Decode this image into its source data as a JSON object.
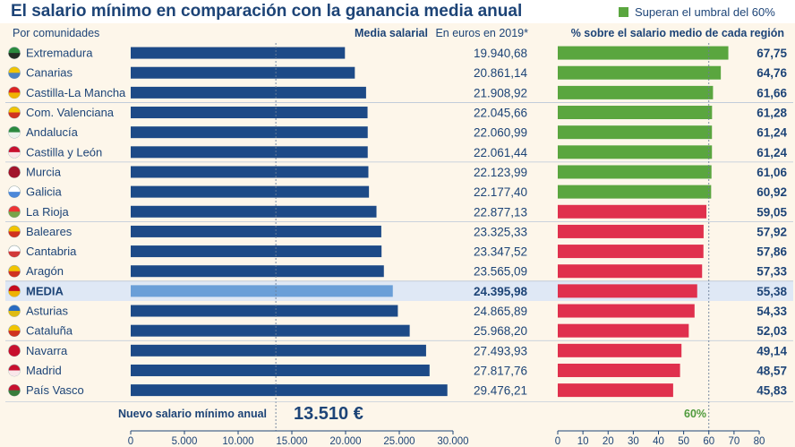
{
  "title": "El salario mínimo en comparación con la ganancia media anual",
  "legend": {
    "label": "Superan el umbral del 60%",
    "color": "#5aa63f"
  },
  "headers": {
    "left": "Por comunidades",
    "salary_bold": "Media salarial",
    "salary_rest": "En euros en 2019*",
    "pct": "% sobre el salario medio de cada región"
  },
  "colors": {
    "bar_blue": "#1d4a87",
    "bar_media": "#6a9fd8",
    "pct_green": "#5aa63f",
    "pct_red": "#e0304d",
    "text": "#1d4477",
    "media_row_bg": "#dfe8f5"
  },
  "chart_data": [
    {
      "type": "bar",
      "orientation": "horizontal",
      "categories": [
        "Extremadura",
        "Canarias",
        "Castilla-La Mancha",
        "Com. Valenciana",
        "Andalucía",
        "Castilla y León",
        "Murcia",
        "Galicia",
        "La Rioja",
        "Baleares",
        "Cantabria",
        "Aragón",
        "MEDIA",
        "Asturias",
        "Cataluña",
        "Navarra",
        "Madrid",
        "País Vasco"
      ],
      "values": [
        19940.68,
        20861.14,
        21908.92,
        22045.66,
        22060.99,
        22061.44,
        22123.99,
        22177.4,
        22877.13,
        23325.33,
        23347.52,
        23565.09,
        24395.98,
        24865.89,
        25968.2,
        27493.93,
        27817.76,
        29476.21
      ],
      "value_labels": [
        "19.940,68",
        "20.861,14",
        "21.908,92",
        "22.045,66",
        "22.060,99",
        "22.061,44",
        "22.123,99",
        "22.177,40",
        "22.877,13",
        "23.325,33",
        "23.347,52",
        "23.565,09",
        "24.395,98",
        "24.865,89",
        "25.968,20",
        "27.493,93",
        "27.817,76",
        "29.476,21"
      ],
      "xlim": [
        0,
        30000
      ],
      "ticks": [
        "0",
        "5.000",
        "10.000",
        "15.000",
        "20.000",
        "25.000",
        "30.000"
      ],
      "tick_values": [
        0,
        5000,
        10000,
        15000,
        20000,
        25000,
        30000
      ],
      "reference_line": {
        "value": 13510,
        "label": "Nuevo salario mínimo anual",
        "value_label": "13.510 €"
      }
    },
    {
      "type": "bar",
      "orientation": "horizontal",
      "categories": [
        "Extremadura",
        "Canarias",
        "Castilla-La Mancha",
        "Com. Valenciana",
        "Andalucía",
        "Castilla y León",
        "Murcia",
        "Galicia",
        "La Rioja",
        "Baleares",
        "Cantabria",
        "Aragón",
        "MEDIA",
        "Asturias",
        "Cataluña",
        "Navarra",
        "Madrid",
        "País Vasco"
      ],
      "values": [
        67.75,
        64.76,
        61.66,
        61.28,
        61.24,
        61.24,
        61.06,
        60.92,
        59.05,
        57.92,
        57.86,
        57.33,
        55.38,
        54.33,
        52.03,
        49.14,
        48.57,
        45.83
      ],
      "value_labels": [
        "67,75",
        "64,76",
        "61,66",
        "61,28",
        "61,24",
        "61,24",
        "61,06",
        "60,92",
        "59,05",
        "57,92",
        "57,86",
        "57,33",
        "55,38",
        "54,33",
        "52,03",
        "49,14",
        "48,57",
        "45,83"
      ],
      "xlim": [
        0,
        80
      ],
      "ticks": [
        "0",
        "10",
        "20",
        "30",
        "40",
        "50",
        "60",
        "70",
        "80"
      ],
      "tick_values": [
        0,
        10,
        20,
        30,
        40,
        50,
        60,
        70,
        80
      ],
      "threshold": {
        "value": 60,
        "label": "60%"
      }
    }
  ]
}
